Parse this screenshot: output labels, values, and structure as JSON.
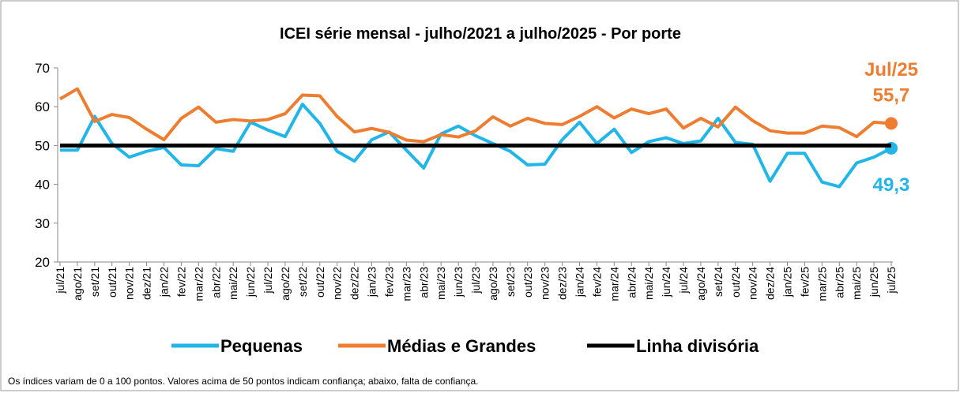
{
  "chart_data": {
    "type": "line",
    "title": "ICEI série mensal - julho/2021 a julho/2025 - Por porte",
    "categories": [
      "jul/21",
      "ago/21",
      "set/21",
      "out/21",
      "nov/21",
      "dez/21",
      "jan/22",
      "fev/22",
      "mar/22",
      "abr/22",
      "mai/22",
      "jun/22",
      "jul/22",
      "ago/22",
      "set/22",
      "out/22",
      "nov/22",
      "dez/22",
      "jan/23",
      "fev/23",
      "mar/23",
      "abr/23",
      "mai/23",
      "jun/23",
      "jul/23",
      "ago/23",
      "set/23",
      "out/23",
      "nov/23",
      "dez/23",
      "jan/24",
      "fev/24",
      "mar/24",
      "abr/24",
      "mai/24",
      "jun/24",
      "jul/24",
      "ago/24",
      "set/24",
      "out/24",
      "nov/24",
      "dez/24",
      "jan/25",
      "fev/25",
      "mar/25",
      "abr/25",
      "mai/25",
      "jun/25",
      "jul/25"
    ],
    "series": [
      {
        "name": "Pequenas",
        "color": "#21b5e8",
        "values": [
          48.8,
          48.8,
          57.5,
          50.5,
          47,
          48.5,
          49.5,
          45,
          44.8,
          49.2,
          48.5,
          56,
          54,
          52.3,
          60.6,
          55.7,
          48.5,
          46,
          51.5,
          53.5,
          48.8,
          44.2,
          53,
          55,
          52.5,
          50.5,
          48.5,
          45,
          45.2,
          51.5,
          56,
          50.5,
          54.2,
          48.2,
          51,
          52,
          50.5,
          51.2,
          57,
          50.8,
          50.3,
          40.8,
          48,
          48,
          40.6,
          39.4,
          45.5,
          47,
          49.3
        ],
        "value_labels": [
          null,
          null,
          null,
          null,
          null,
          null,
          null,
          null,
          null,
          null,
          null,
          null,
          null,
          null,
          null,
          null,
          null,
          null,
          null,
          null,
          null,
          null,
          null,
          null,
          null,
          null,
          null,
          null,
          null,
          null,
          null,
          null,
          null,
          null,
          null,
          null,
          null,
          null,
          null,
          null,
          null,
          null,
          null,
          null,
          null,
          null,
          null,
          null,
          "49,3"
        ]
      },
      {
        "name": "Médias e Grandes",
        "color": "#ed7d31",
        "values": [
          62,
          64.6,
          56.2,
          58,
          57.2,
          54.2,
          51.5,
          57,
          59.9,
          56,
          56.7,
          56.3,
          56.7,
          58.2,
          63,
          62.8,
          57.5,
          53.5,
          54.4,
          53.4,
          51.4,
          51,
          52.8,
          52.2,
          53.8,
          57.4,
          55,
          57,
          55.7,
          55.4,
          57.5,
          60,
          57.1,
          59.4,
          58.2,
          59.4,
          54.5,
          57,
          54.8,
          59.9,
          56.4,
          53.8,
          53.2,
          53.2,
          55,
          54.6,
          52.3,
          56,
          55.7
        ],
        "value_labels": [
          null,
          null,
          null,
          null,
          null,
          null,
          null,
          null,
          null,
          null,
          null,
          null,
          null,
          null,
          null,
          null,
          null,
          null,
          null,
          null,
          null,
          null,
          null,
          null,
          null,
          null,
          null,
          null,
          null,
          null,
          null,
          null,
          null,
          null,
          null,
          null,
          null,
          null,
          null,
          null,
          null,
          null,
          null,
          null,
          null,
          null,
          null,
          null,
          "55,7"
        ]
      },
      {
        "name": "Linha divisória",
        "color": "#000000",
        "values": [
          50,
          50,
          50,
          50,
          50,
          50,
          50,
          50,
          50,
          50,
          50,
          50,
          50,
          50,
          50,
          50,
          50,
          50,
          50,
          50,
          50,
          50,
          50,
          50,
          50,
          50,
          50,
          50,
          50,
          50,
          50,
          50,
          50,
          50,
          50,
          50,
          50,
          50,
          50,
          50,
          50,
          50,
          50,
          50,
          50,
          50,
          50,
          50,
          50
        ]
      }
    ],
    "annotations": [
      "Jul/25"
    ],
    "ylim": [
      20,
      70
    ],
    "yticks": [
      20,
      30,
      40,
      50,
      60,
      70
    ],
    "legend": "bottom",
    "footnote": "Os índices variam de 0 a 100 pontos. Valores acima de 50 pontos indicam confiança; abaixo, falta de confiança."
  }
}
